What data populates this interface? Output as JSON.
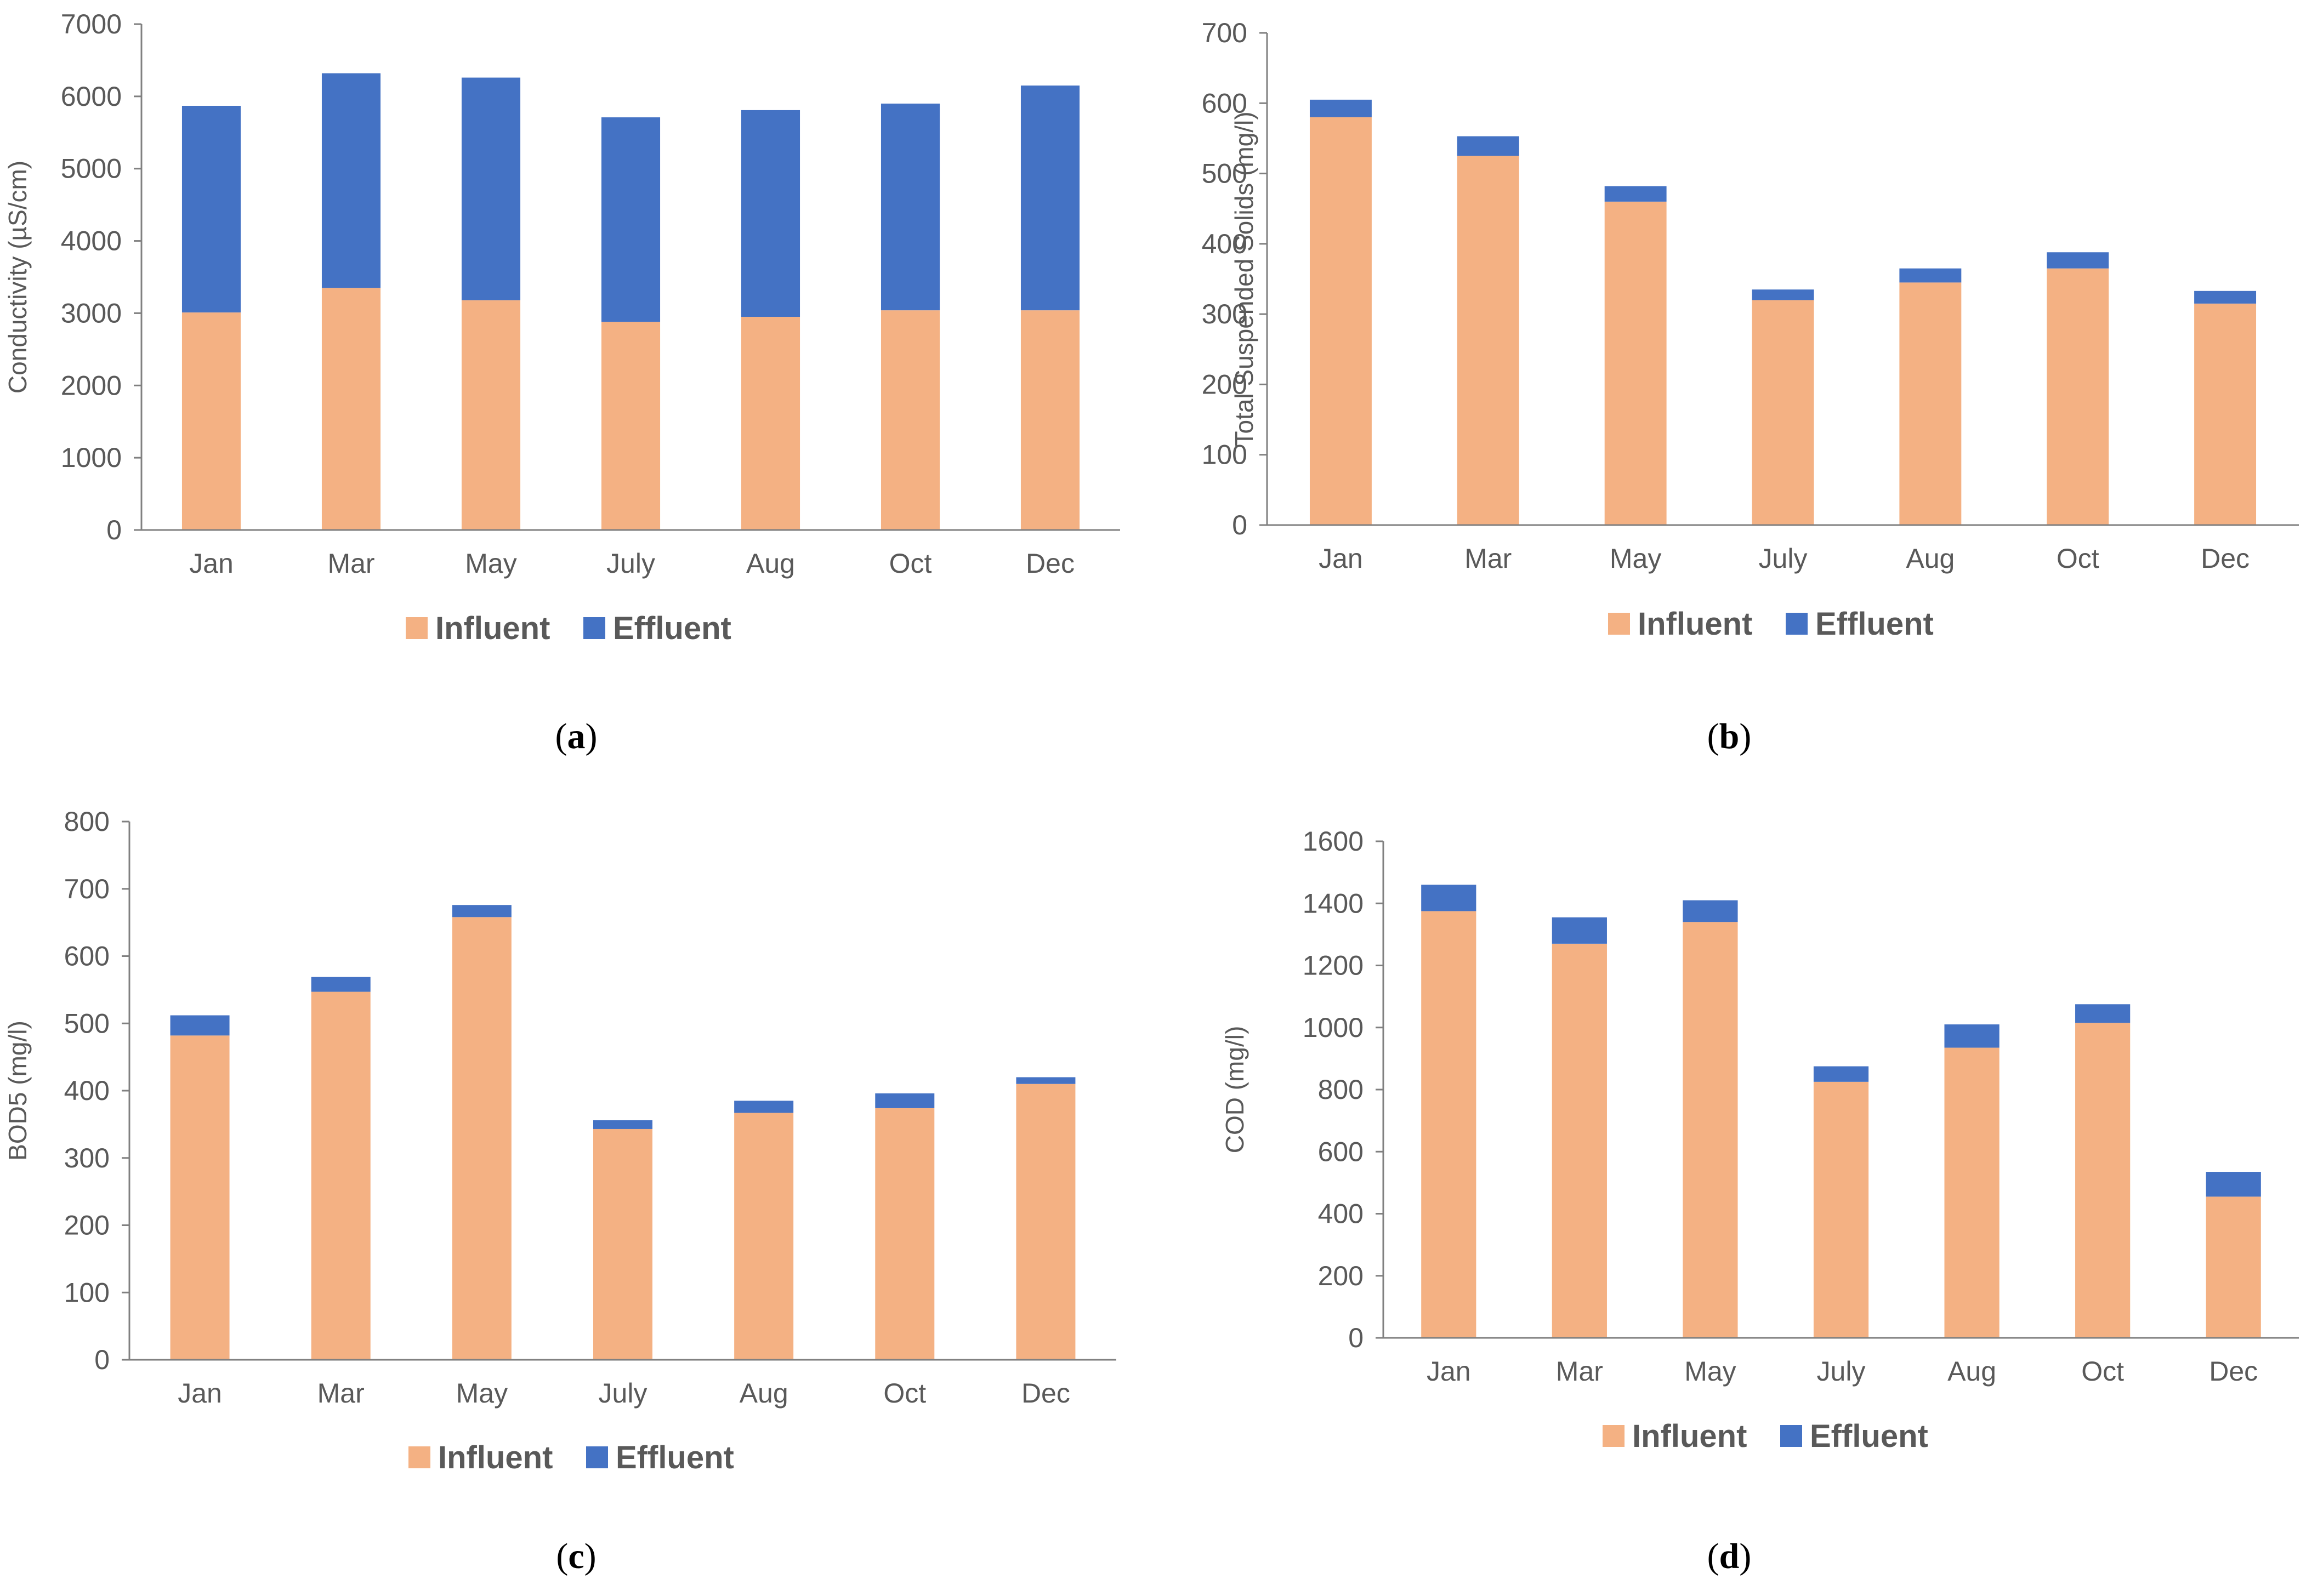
{
  "colors": {
    "influent": "#F4B183",
    "effluent": "#4472C4",
    "axis": "#808080",
    "text": "#595959"
  },
  "chart_data": [
    {
      "type": "bar",
      "stacked": true,
      "panel_label": "a",
      "ylabel": "Conductivity (µS/cm)",
      "categories": [
        "Jan",
        "Mar",
        "May",
        "July",
        "Aug",
        "Oct",
        "Dec"
      ],
      "ylim": [
        0,
        7000
      ],
      "yticks": [
        0,
        1000,
        2000,
        3000,
        4000,
        5000,
        6000,
        7000
      ],
      "series": [
        {
          "name": "Influent",
          "values": [
            3010,
            3350,
            3180,
            2880,
            2950,
            3040,
            3040
          ]
        },
        {
          "name": "Effluent",
          "values": [
            2860,
            2970,
            3080,
            2830,
            2860,
            2860,
            3110
          ]
        }
      ],
      "legend_position": "bottom"
    },
    {
      "type": "bar",
      "stacked": true,
      "panel_label": "b",
      "ylabel": "Total Suspended Solids (mg/l)",
      "categories": [
        "Jan",
        "Mar",
        "May",
        "July",
        "Aug",
        "Oct",
        "Dec"
      ],
      "ylim": [
        0,
        700
      ],
      "yticks": [
        0,
        100,
        200,
        300,
        400,
        500,
        600,
        700
      ],
      "series": [
        {
          "name": "Influent",
          "values": [
            580,
            525,
            460,
            320,
            345,
            365,
            315
          ]
        },
        {
          "name": "Effluent",
          "values": [
            25,
            28,
            22,
            15,
            20,
            23,
            18
          ]
        }
      ],
      "legend_position": "bottom"
    },
    {
      "type": "bar",
      "stacked": true,
      "panel_label": "c",
      "ylabel": "BOD5 (mg/l)",
      "categories": [
        "Jan",
        "Mar",
        "May",
        "July",
        "Aug",
        "Oct",
        "Dec"
      ],
      "ylim": [
        0,
        800
      ],
      "yticks": [
        0,
        100,
        200,
        300,
        400,
        500,
        600,
        700,
        800
      ],
      "series": [
        {
          "name": "Influent",
          "values": [
            482,
            547,
            658,
            343,
            367,
            374,
            410
          ]
        },
        {
          "name": "Effluent",
          "values": [
            30,
            22,
            18,
            13,
            18,
            22,
            10
          ]
        }
      ],
      "legend_position": "bottom"
    },
    {
      "type": "bar",
      "stacked": true,
      "panel_label": "d",
      "ylabel": "COD (mg/l)",
      "categories": [
        "Jan",
        "Mar",
        "May",
        "July",
        "Aug",
        "Oct",
        "Dec"
      ],
      "ylim": [
        0,
        1600
      ],
      "yticks": [
        0,
        200,
        400,
        600,
        800,
        1000,
        1200,
        1400,
        1600
      ],
      "series": [
        {
          "name": "Influent",
          "values": [
            1375,
            1270,
            1340,
            825,
            935,
            1015,
            455
          ]
        },
        {
          "name": "Effluent",
          "values": [
            85,
            85,
            70,
            50,
            75,
            60,
            80
          ]
        }
      ],
      "legend_position": "bottom"
    }
  ]
}
